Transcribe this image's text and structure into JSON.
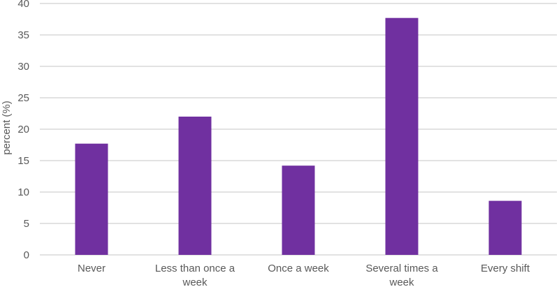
{
  "chart_data": {
    "type": "bar",
    "title": "",
    "xlabel": "",
    "ylabel": "percent (%)",
    "categories": [
      "Never",
      "Less than once a week",
      "Once a week",
      "Several times a week",
      "Every shift"
    ],
    "category_lines": [
      [
        "Never"
      ],
      [
        "Less than once a",
        "week"
      ],
      [
        "Once a week"
      ],
      [
        "Several times a",
        "week"
      ],
      [
        "Every shift"
      ]
    ],
    "values": [
      17.7,
      22.0,
      14.2,
      37.7,
      8.6
    ],
    "ylim": [
      0,
      40
    ],
    "yticks": [
      0,
      5,
      10,
      15,
      20,
      25,
      30,
      35,
      40
    ],
    "grid": true,
    "legend": "none",
    "bar_color": "#7030a0",
    "grid_color": "#d9d9d9",
    "text_color": "#595959"
  }
}
